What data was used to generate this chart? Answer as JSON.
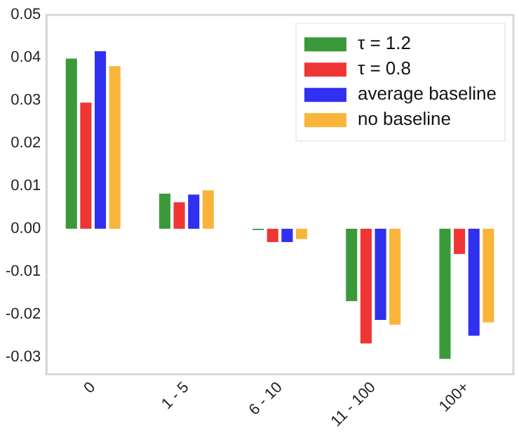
{
  "chart_data": {
    "type": "bar",
    "categories": [
      "0",
      "1 - 5",
      "6 - 10",
      "11 - 100",
      "100+"
    ],
    "series": [
      {
        "name": "τ = 1.2",
        "color": "#3a9a3a",
        "values": [
          0.0398,
          0.0082,
          -0.0003,
          -0.0169,
          -0.0304
        ]
      },
      {
        "name": "τ = 0.8",
        "color": "#f03535",
        "values": [
          0.0295,
          0.0062,
          -0.0031,
          -0.0268,
          -0.0059
        ]
      },
      {
        "name": "average baseline",
        "color": "#3030f0",
        "values": [
          0.0415,
          0.008,
          -0.0031,
          -0.0213,
          -0.025
        ]
      },
      {
        "name": "no baseline",
        "color": "#f8b53a",
        "values": [
          0.038,
          0.009,
          -0.0024,
          -0.0224,
          -0.0219
        ]
      }
    ],
    "ylim": [
      -0.034,
      0.05
    ],
    "yticks": [
      {
        "value": -0.03,
        "label": "-0.03"
      },
      {
        "value": -0.02,
        "label": "-0.02"
      },
      {
        "value": -0.01,
        "label": "-0.01"
      },
      {
        "value": 0,
        "label": "0.00"
      },
      {
        "value": 0.01,
        "label": "0.01"
      },
      {
        "value": 0.02,
        "label": "0.02"
      },
      {
        "value": 0.03,
        "label": "0.03"
      },
      {
        "value": 0.04,
        "label": "0.04"
      },
      {
        "value": 0.05,
        "label": "0.05"
      }
    ],
    "grid": false,
    "legend": "top right"
  }
}
